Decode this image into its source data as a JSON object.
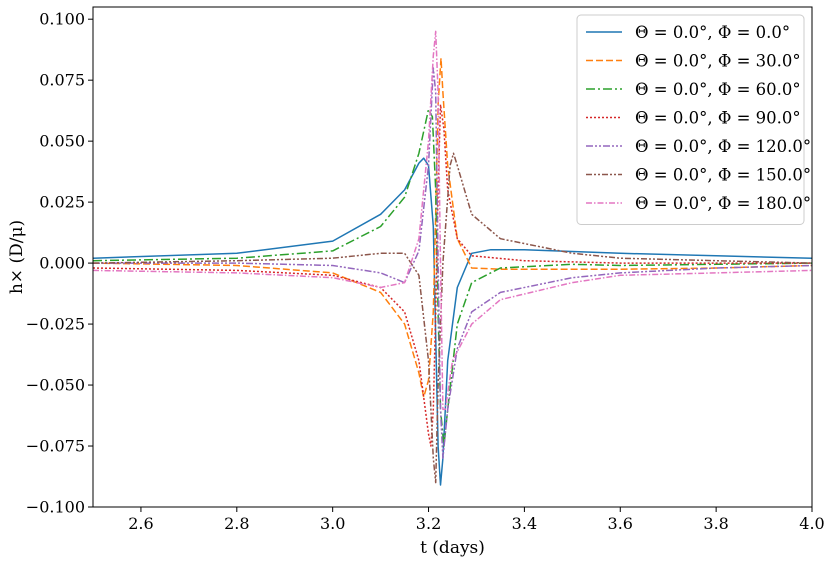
{
  "chart_data": {
    "type": "line",
    "xlabel": "t (days)",
    "ylabel": "h× (D/μ)",
    "xlim": [
      2.5,
      4.0
    ],
    "ylim": [
      -0.1,
      0.105
    ],
    "x_ticks": [
      "2.6",
      "2.8",
      "3.0",
      "3.2",
      "3.4",
      "3.6",
      "3.8",
      "4.0"
    ],
    "y_ticks": [
      "−0.100",
      "−0.075",
      "−0.050",
      "−0.025",
      "0.000",
      "0.025",
      "0.050",
      "0.075",
      "0.100"
    ],
    "grid": false,
    "legend_position": "top-right",
    "series": [
      {
        "name": "Θ = 0.0°,  Φ = 0.0°",
        "color": "#1f77b4",
        "dash": "solid",
        "points": [
          [
            2.5,
            0.002
          ],
          [
            2.8,
            0.004
          ],
          [
            3.0,
            0.009
          ],
          [
            3.1,
            0.02
          ],
          [
            3.15,
            0.03
          ],
          [
            3.18,
            0.041
          ],
          [
            3.19,
            0.043
          ],
          [
            3.2,
            0.04
          ],
          [
            3.21,
            0.015
          ],
          [
            3.215,
            -0.03
          ],
          [
            3.22,
            -0.075
          ],
          [
            3.225,
            -0.091
          ],
          [
            3.23,
            -0.08
          ],
          [
            3.24,
            -0.04
          ],
          [
            3.26,
            -0.01
          ],
          [
            3.29,
            0.004
          ],
          [
            3.33,
            0.0055
          ],
          [
            3.4,
            0.0055
          ],
          [
            3.6,
            0.004
          ],
          [
            3.8,
            0.003
          ],
          [
            4.0,
            0.002
          ]
        ]
      },
      {
        "name": "Θ = 0.0°,  Φ = 30.0°",
        "color": "#ff7f0e",
        "dash": "dashed",
        "points": [
          [
            2.5,
            0.0
          ],
          [
            2.8,
            -0.001
          ],
          [
            3.0,
            -0.004
          ],
          [
            3.1,
            -0.012
          ],
          [
            3.15,
            -0.025
          ],
          [
            3.18,
            -0.045
          ],
          [
            3.19,
            -0.055
          ],
          [
            3.2,
            -0.048
          ],
          [
            3.21,
            -0.02
          ],
          [
            3.215,
            0.02
          ],
          [
            3.22,
            0.065
          ],
          [
            3.226,
            0.084
          ],
          [
            3.23,
            0.07
          ],
          [
            3.24,
            0.04
          ],
          [
            3.26,
            0.01
          ],
          [
            3.29,
            -0.002
          ],
          [
            3.35,
            -0.0025
          ],
          [
            3.6,
            -0.0025
          ],
          [
            3.8,
            -0.002
          ],
          [
            4.0,
            -0.001
          ]
        ]
      },
      {
        "name": "Θ = 0.0°,  Φ = 60.0°",
        "color": "#2ca02c",
        "dash": "dashdot",
        "points": [
          [
            2.5,
            0.001
          ],
          [
            2.8,
            0.002
          ],
          [
            3.0,
            0.005
          ],
          [
            3.1,
            0.015
          ],
          [
            3.15,
            0.027
          ],
          [
            3.18,
            0.045
          ],
          [
            3.2,
            0.063
          ],
          [
            3.208,
            0.06
          ],
          [
            3.215,
            0.03
          ],
          [
            3.22,
            -0.02
          ],
          [
            3.225,
            -0.06
          ],
          [
            3.232,
            -0.075
          ],
          [
            3.24,
            -0.06
          ],
          [
            3.26,
            -0.025
          ],
          [
            3.29,
            -0.008
          ],
          [
            3.35,
            -0.002
          ],
          [
            3.5,
            -0.0005
          ],
          [
            3.6,
            -0.001
          ],
          [
            3.8,
            -0.0005
          ],
          [
            4.0,
            0.0
          ]
        ]
      },
      {
        "name": "Θ = 0.0°,  Φ = 90.0°",
        "color": "#d62728",
        "dash": "dotted",
        "points": [
          [
            2.5,
            -0.002
          ],
          [
            2.8,
            -0.003
          ],
          [
            3.0,
            -0.005
          ],
          [
            3.1,
            -0.01
          ],
          [
            3.15,
            -0.02
          ],
          [
            3.18,
            -0.04
          ],
          [
            3.2,
            -0.07
          ],
          [
            3.205,
            -0.075
          ],
          [
            3.21,
            -0.06
          ],
          [
            3.215,
            -0.02
          ],
          [
            3.22,
            0.03
          ],
          [
            3.225,
            0.065
          ],
          [
            3.232,
            0.055
          ],
          [
            3.24,
            0.03
          ],
          [
            3.26,
            0.01
          ],
          [
            3.29,
            0.003
          ],
          [
            3.4,
            0.001
          ],
          [
            3.6,
            0.0
          ],
          [
            4.0,
            0.0
          ]
        ]
      },
      {
        "name": "Θ = 0.0°,  Φ = 120.0°",
        "color": "#9467bd",
        "dash": "dashdotdot",
        "points": [
          [
            2.5,
            0.0
          ],
          [
            2.8,
            0.0
          ],
          [
            3.0,
            -0.001
          ],
          [
            3.1,
            -0.004
          ],
          [
            3.15,
            -0.008
          ],
          [
            3.18,
            0.005
          ],
          [
            3.2,
            0.04
          ],
          [
            3.21,
            0.08
          ],
          [
            3.215,
            0.07
          ],
          [
            3.22,
            0.0
          ],
          [
            3.225,
            -0.06
          ],
          [
            3.23,
            -0.08
          ],
          [
            3.24,
            -0.06
          ],
          [
            3.26,
            -0.035
          ],
          [
            3.29,
            -0.02
          ],
          [
            3.35,
            -0.012
          ],
          [
            3.5,
            -0.006
          ],
          [
            3.6,
            -0.004
          ],
          [
            3.8,
            -0.002
          ],
          [
            4.0,
            -0.001
          ]
        ]
      },
      {
        "name": "Θ = 0.0°,  Φ = 150.0°",
        "color": "#8c564b",
        "dash": "dashdotdot2",
        "points": [
          [
            2.5,
            0.0
          ],
          [
            2.8,
            0.001
          ],
          [
            3.0,
            0.002
          ],
          [
            3.1,
            0.004
          ],
          [
            3.15,
            0.004
          ],
          [
            3.18,
            -0.005
          ],
          [
            3.2,
            -0.04
          ],
          [
            3.21,
            -0.08
          ],
          [
            3.215,
            -0.09
          ],
          [
            3.22,
            -0.05
          ],
          [
            3.23,
            0.0
          ],
          [
            3.245,
            0.04
          ],
          [
            3.252,
            0.045
          ],
          [
            3.26,
            0.04
          ],
          [
            3.29,
            0.02
          ],
          [
            3.35,
            0.01
          ],
          [
            3.5,
            0.004
          ],
          [
            3.6,
            0.002
          ],
          [
            3.8,
            0.001
          ],
          [
            4.0,
            0.0
          ]
        ]
      },
      {
        "name": "Θ = 0.0°,  Φ = 180.0°",
        "color": "#e377c2",
        "dash": "dashdot2",
        "points": [
          [
            2.5,
            -0.003
          ],
          [
            2.8,
            -0.004
          ],
          [
            3.0,
            -0.006
          ],
          [
            3.1,
            -0.01
          ],
          [
            3.15,
            -0.008
          ],
          [
            3.18,
            0.01
          ],
          [
            3.2,
            0.05
          ],
          [
            3.21,
            0.085
          ],
          [
            3.215,
            0.095
          ],
          [
            3.22,
            0.07
          ],
          [
            3.225,
            0.0
          ],
          [
            3.23,
            -0.06
          ],
          [
            3.235,
            -0.06
          ],
          [
            3.25,
            -0.04
          ],
          [
            3.29,
            -0.025
          ],
          [
            3.35,
            -0.015
          ],
          [
            3.5,
            -0.008
          ],
          [
            3.6,
            -0.005
          ],
          [
            3.8,
            -0.004
          ],
          [
            4.0,
            -0.003
          ]
        ]
      }
    ]
  }
}
